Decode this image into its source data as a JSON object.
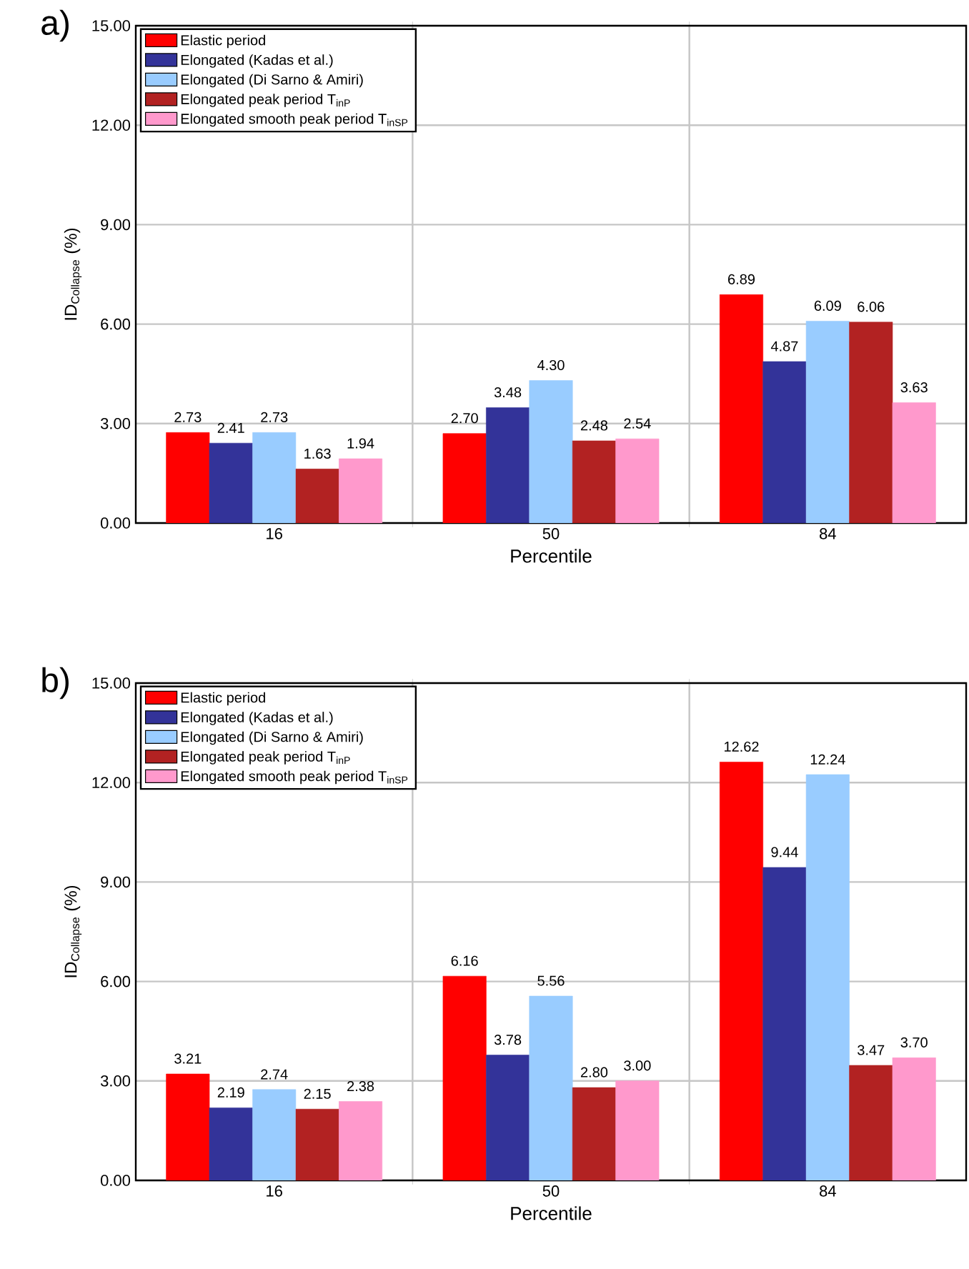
{
  "chart_data": [
    {
      "type": "bar",
      "title": "a)",
      "xlabel": "Percentile",
      "ylabel": "ID$_{Collapse}$ (%)",
      "categories": [
        "16",
        "50",
        "84"
      ],
      "series": [
        {
          "name": "Elastic period",
          "color": "#ff0000",
          "values": [
            2.73,
            2.7,
            6.89
          ],
          "value_labels": [
            "2.73",
            "2.70",
            "6.89"
          ]
        },
        {
          "name": "Elongated (Kadas et al.)",
          "color": "#333399",
          "values": [
            2.41,
            3.48,
            4.87
          ],
          "value_labels": [
            "2.41",
            "3.48",
            "4.87"
          ]
        },
        {
          "name": "Elongated (Di Sarno & Amiri)",
          "color": "#99ccff",
          "values": [
            2.73,
            4.3,
            6.09
          ],
          "value_labels": [
            "2.73",
            "4.30",
            "6.09"
          ]
        },
        {
          "name": "Elongated peak period T$_{inP}$",
          "color": "#b22222",
          "values": [
            1.63,
            2.48,
            6.06
          ],
          "value_labels": [
            "1.63",
            "2.48",
            "6.06"
          ]
        },
        {
          "name": "Elongated smooth peak period T$_{inSP}$",
          "color": "#ff99cc",
          "values": [
            1.94,
            2.54,
            3.63
          ],
          "value_labels": [
            "1.94",
            "2.54",
            "3.63"
          ]
        }
      ],
      "ylim": [
        0,
        15
      ],
      "yticks": [
        {
          "value": 0,
          "label": "0.00"
        },
        {
          "value": 3,
          "label": "3.00"
        },
        {
          "value": 6,
          "label": "6.00"
        },
        {
          "value": 9,
          "label": "9.00"
        },
        {
          "value": 12,
          "label": "12.00"
        },
        {
          "value": 15,
          "label": "15.00"
        }
      ],
      "grid": true,
      "legend": "top left"
    },
    {
      "type": "bar",
      "title": "b)",
      "xlabel": "Percentile",
      "ylabel": "ID$_{Collapse}$ (%)",
      "categories": [
        "16",
        "50",
        "84"
      ],
      "series": [
        {
          "name": "Elastic period",
          "color": "#ff0000",
          "values": [
            3.21,
            6.16,
            12.62
          ],
          "value_labels": [
            "3.21",
            "6.16",
            "12.62"
          ]
        },
        {
          "name": "Elongated (Kadas et al.)",
          "color": "#333399",
          "values": [
            2.19,
            3.78,
            9.44
          ],
          "value_labels": [
            "2.19",
            "3.78",
            "9.44"
          ]
        },
        {
          "name": "Elongated (Di Sarno & Amiri)",
          "color": "#99ccff",
          "values": [
            2.74,
            5.56,
            12.24
          ],
          "value_labels": [
            "2.74",
            "5.56",
            "12.24"
          ]
        },
        {
          "name": "Elongated peak period T$_{inP}$",
          "color": "#b22222",
          "values": [
            2.15,
            2.8,
            3.47
          ],
          "value_labels": [
            "2.15",
            "2.80",
            "3.47"
          ]
        },
        {
          "name": "Elongated smooth peak period T$_{inSP}$",
          "color": "#ff99cc",
          "values": [
            2.38,
            3.0,
            3.7
          ],
          "value_labels": [
            "2.38",
            "3.00",
            "3.70"
          ]
        }
      ],
      "ylim": [
        0,
        15
      ],
      "yticks": [
        {
          "value": 0,
          "label": "0.00"
        },
        {
          "value": 3,
          "label": "3.00"
        },
        {
          "value": 6,
          "label": "6.00"
        },
        {
          "value": 9,
          "label": "9.00"
        },
        {
          "value": 12,
          "label": "12.00"
        },
        {
          "value": 15,
          "label": "15.00"
        }
      ],
      "grid": true,
      "legend": "top left"
    }
  ]
}
